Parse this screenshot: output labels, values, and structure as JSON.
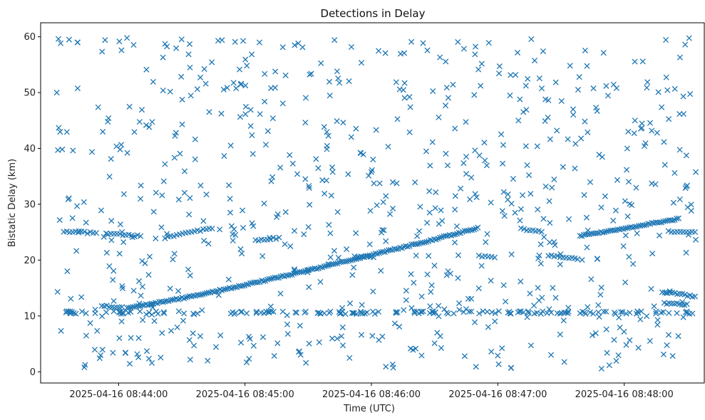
{
  "chart_data": {
    "type": "scatter",
    "title": "Detections in Delay",
    "xlabel": "Time (UTC)",
    "ylabel": "Bistatic Delay (km)",
    "marker": "x",
    "color": "#1f77b4",
    "x_unit": "time (UTC)",
    "xlim": [
      "2025-04-16 08:43:23",
      "2025-04-16 08:48:38"
    ],
    "ylim": [
      -2,
      62.5
    ],
    "x_ticks": [
      "2025-04-16 08:44:00",
      "2025-04-16 08:45:00",
      "2025-04-16 08:46:00",
      "2025-04-16 08:47:00",
      "2025-04-16 08:48:00"
    ],
    "y_ticks": [
      0,
      10,
      20,
      30,
      40,
      50,
      60
    ],
    "grid": false,
    "track_main": {
      "description": "dense curved detection track",
      "segments": [
        {
          "t": [
            "2025-04-16 08:44:04",
            "2025-04-16 08:46:51"
          ],
          "y": [
            11.5,
            25.8
          ]
        },
        {
          "t": [
            "2025-04-16 08:47:39",
            "2025-04-16 08:48:26"
          ],
          "y": [
            24.3,
            27.4
          ]
        }
      ]
    },
    "track_25km": {
      "segments": [
        {
          "t": [
            "2025-04-16 08:43:34",
            "2025-04-16 08:43:50"
          ],
          "y": [
            25.2,
            24.8
          ]
        },
        {
          "t": [
            "2025-04-16 08:43:55",
            "2025-04-16 08:44:11"
          ],
          "y": [
            24.7,
            24.3
          ]
        },
        {
          "t": [
            "2025-04-16 08:44:22",
            "2025-04-16 08:44:45"
          ],
          "y": [
            24.0,
            25.8
          ]
        },
        {
          "t": [
            "2025-04-16 08:45:05",
            "2025-04-16 08:45:17"
          ],
          "y": [
            23.6,
            24.0
          ]
        },
        {
          "t": [
            "2025-04-16 08:47:11",
            "2025-04-16 08:47:21"
          ],
          "y": [
            25.6,
            25.2
          ]
        },
        {
          "t": [
            "2025-04-16 08:47:24",
            "2025-04-16 08:47:38"
          ],
          "y": [
            20.8,
            20.3
          ]
        },
        {
          "t": [
            "2025-04-16 08:48:21",
            "2025-04-16 08:48:34"
          ],
          "y": [
            25.2,
            25.0
          ]
        }
      ]
    },
    "track_20km": {
      "segments": [
        {
          "t": [
            "2025-04-16 08:45:52",
            "2025-04-16 08:46:02"
          ],
          "y": [
            20.7,
            20.5
          ]
        },
        {
          "t": [
            "2025-04-16 08:46:51",
            "2025-04-16 08:46:59"
          ],
          "y": [
            20.8,
            20.6
          ]
        }
      ]
    },
    "track_13km": {
      "segments": [
        {
          "t": [
            "2025-04-16 08:48:18",
            "2025-04-16 08:48:34"
          ],
          "y": [
            14.3,
            13.5
          ]
        },
        {
          "t": [
            "2025-04-16 08:48:19",
            "2025-04-16 08:48:31"
          ],
          "y": [
            12.3,
            12.0
          ]
        },
        {
          "t": [
            "2025-04-16 08:43:52",
            "2025-04-16 08:44:02"
          ],
          "y": [
            11.8,
            11.5
          ]
        }
      ]
    },
    "clutter_line": {
      "y": 10.6,
      "t_range": [
        "2025-04-16 08:43:30",
        "2025-04-16 08:48:34"
      ]
    },
    "noise": {
      "description": "random false alarms uniformly spread",
      "y_range": [
        0.5,
        59.8
      ]
    }
  }
}
